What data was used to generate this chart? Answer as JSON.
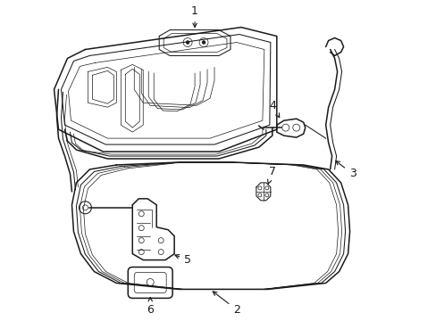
{
  "background_color": "#ffffff",
  "line_color": "#1a1a1a",
  "lw_main": 1.1,
  "lw_med": 0.75,
  "lw_thin": 0.5,
  "label_fontsize": 9,
  "figsize": [
    4.89,
    3.6
  ],
  "dpi": 100
}
